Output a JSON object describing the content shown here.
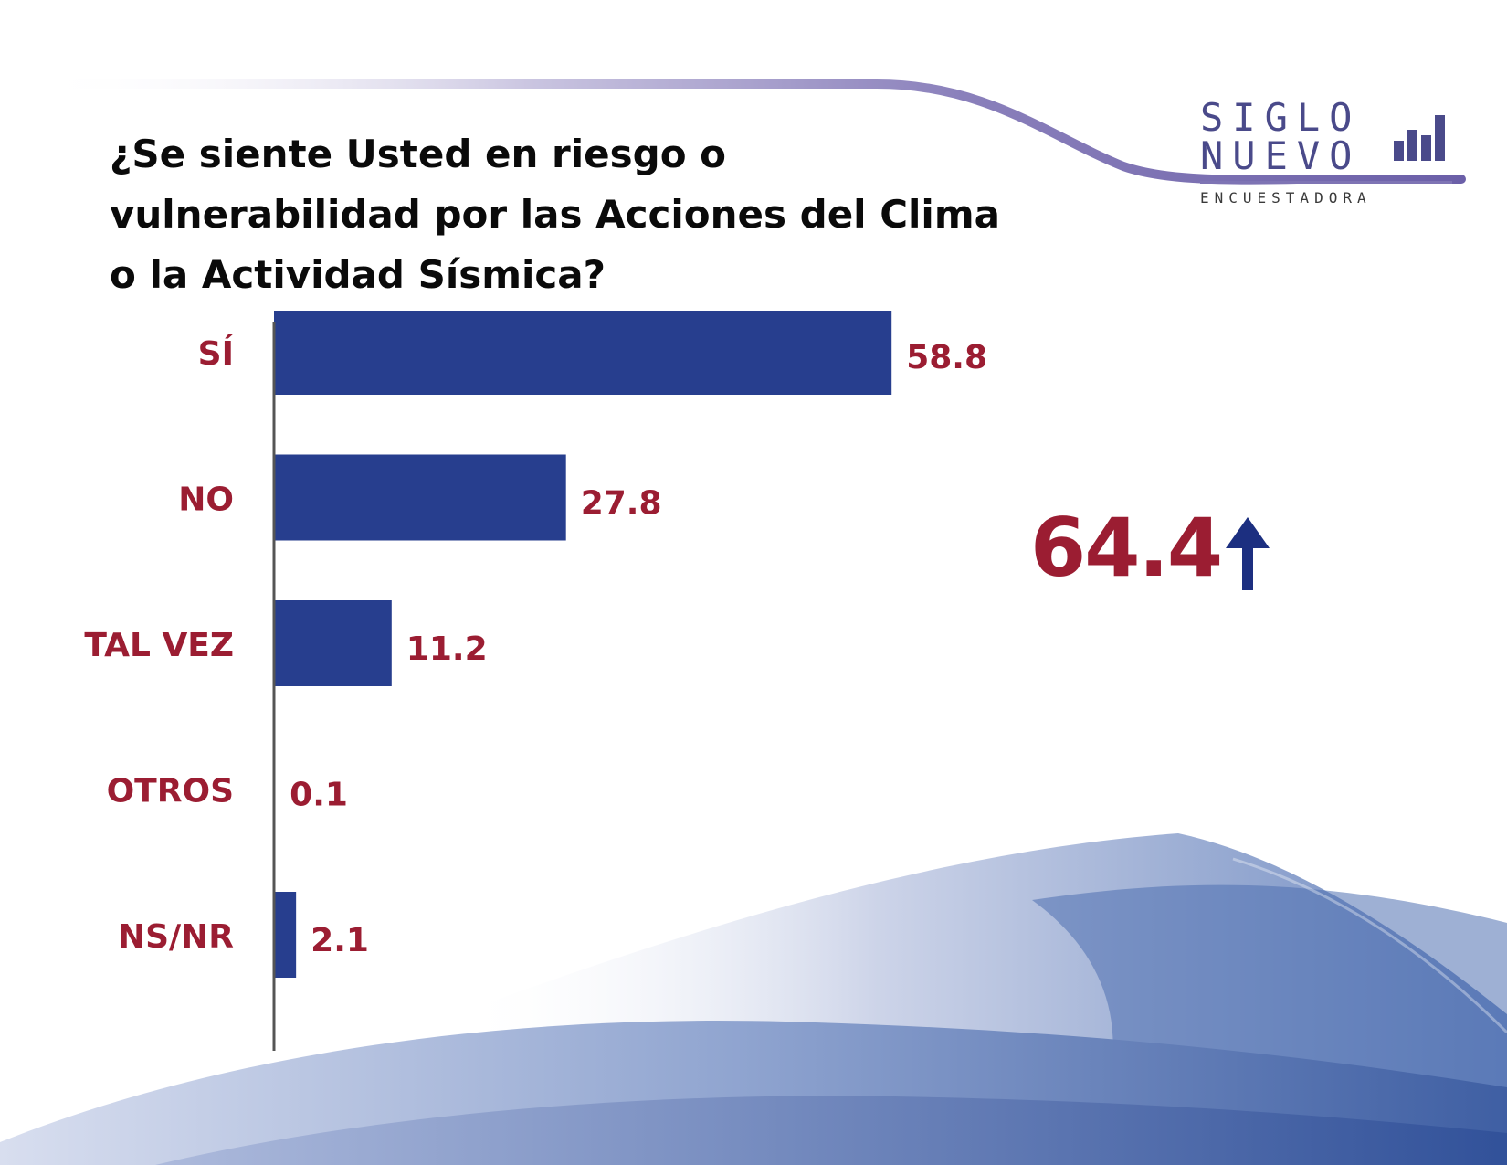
{
  "title": "¿Se siente Usted en riesgo o vulnerabilidad por las Acciones del Clima o la Actividad Sísmica?",
  "logo": {
    "line1": "SIGLO",
    "line2": "NUEVO",
    "line3": "ENCUESTADORA"
  },
  "summary": {
    "value": "64.4",
    "trend_icon": "arrow-up-icon"
  },
  "colors": {
    "bar": "#273e8e",
    "label": "#9b1d32",
    "arrow": "#1c2f80",
    "axis": "#555555"
  },
  "chart_data": {
    "type": "bar",
    "orientation": "horizontal",
    "categories": [
      "SÍ",
      "NO",
      "TAL VEZ",
      "OTROS",
      "NS/NR"
    ],
    "values": [
      58.8,
      27.8,
      11.2,
      0.1,
      2.1
    ],
    "value_labels": [
      "58.8",
      "27.8",
      "11.2",
      "0.1",
      "2.1"
    ],
    "xlim": [
      0,
      100
    ],
    "grid": false,
    "legend": "none"
  }
}
